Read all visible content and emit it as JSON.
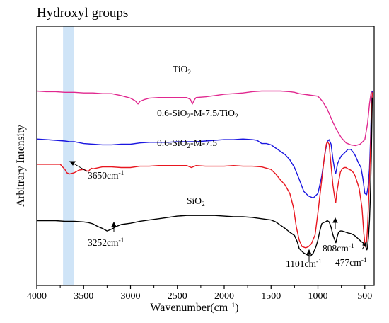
{
  "chart_data": {
    "type": "line",
    "title": "Hydroxyl groups",
    "xlabel": {
      "main": "Wavenumber(cm",
      "sup": "−1",
      "tail": ")"
    },
    "ylabel": "Arbitrary Intensity",
    "xlim": [
      4000,
      400
    ],
    "xticks": [
      4000,
      3500,
      3000,
      2500,
      2000,
      1500,
      1000,
      500
    ],
    "xtick_labels": [
      "4000",
      "3500",
      "3000",
      "2500",
      "2000",
      "1500",
      "1000",
      "500"
    ],
    "yticks": "none",
    "grid": false,
    "highlight_band": {
      "x_range": [
        3720,
        3600
      ],
      "color": "#cfe4f7"
    },
    "series": [
      {
        "name": {
          "main": "TiO",
          "sub": "2"
        },
        "color": "#e0288f",
        "points": [
          [
            4000,
            100
          ],
          [
            3900,
            101
          ],
          [
            3800,
            101
          ],
          [
            3700,
            102
          ],
          [
            3600,
            102
          ],
          [
            3500,
            103
          ],
          [
            3400,
            103
          ],
          [
            3300,
            104
          ],
          [
            3200,
            104
          ],
          [
            3100,
            107
          ],
          [
            3000,
            111
          ],
          [
            2950,
            115
          ],
          [
            2920,
            120
          ],
          [
            2900,
            116
          ],
          [
            2850,
            113
          ],
          [
            2800,
            111
          ],
          [
            2700,
            110
          ],
          [
            2600,
            110
          ],
          [
            2500,
            110
          ],
          [
            2400,
            110
          ],
          [
            2360,
            113
          ],
          [
            2340,
            120
          ],
          [
            2320,
            114
          ],
          [
            2300,
            110
          ],
          [
            2200,
            109
          ],
          [
            2100,
            107
          ],
          [
            2000,
            105
          ],
          [
            1900,
            104
          ],
          [
            1800,
            103
          ],
          [
            1700,
            101
          ],
          [
            1600,
            100
          ],
          [
            1500,
            100
          ],
          [
            1400,
            100
          ],
          [
            1300,
            101
          ],
          [
            1250,
            102
          ],
          [
            1200,
            104
          ],
          [
            1100,
            106
          ],
          [
            1000,
            108
          ],
          [
            950,
            116
          ],
          [
            900,
            128
          ],
          [
            850,
            145
          ],
          [
            800,
            160
          ],
          [
            750,
            172
          ],
          [
            700,
            180
          ],
          [
            650,
            183
          ],
          [
            600,
            184
          ],
          [
            550,
            182
          ],
          [
            500,
            175
          ],
          [
            470,
            150
          ],
          [
            450,
            120
          ],
          [
            430,
            100
          ]
        ]
      },
      {
        "name": {
          "main": "0.6-SiO",
          "sub": "2",
          "tail": "-M-7.5/TiO",
          "sub2": "2"
        },
        "color": "#1a16e0",
        "points": [
          [
            4000,
            174
          ],
          [
            3900,
            175
          ],
          [
            3800,
            176
          ],
          [
            3700,
            177
          ],
          [
            3650,
            178
          ],
          [
            3600,
            178
          ],
          [
            3500,
            181
          ],
          [
            3400,
            182
          ],
          [
            3300,
            183
          ],
          [
            3200,
            183
          ],
          [
            3100,
            182
          ],
          [
            3000,
            182
          ],
          [
            2900,
            180
          ],
          [
            2800,
            179
          ],
          [
            2700,
            179
          ],
          [
            2600,
            179
          ],
          [
            2500,
            178
          ],
          [
            2400,
            178
          ],
          [
            2300,
            178
          ],
          [
            2200,
            177
          ],
          [
            2100,
            176
          ],
          [
            2000,
            175
          ],
          [
            1900,
            175
          ],
          [
            1800,
            174
          ],
          [
            1700,
            175
          ],
          [
            1650,
            176
          ],
          [
            1600,
            181
          ],
          [
            1550,
            181
          ],
          [
            1500,
            183
          ],
          [
            1450,
            188
          ],
          [
            1400,
            193
          ],
          [
            1350,
            198
          ],
          [
            1300,
            206
          ],
          [
            1250,
            218
          ],
          [
            1200,
            236
          ],
          [
            1150,
            255
          ],
          [
            1100,
            262
          ],
          [
            1050,
            265
          ],
          [
            1000,
            258
          ],
          [
            960,
            232
          ],
          [
            920,
            192
          ],
          [
            900,
            178
          ],
          [
            880,
            175
          ],
          [
            860,
            182
          ],
          [
            840,
            205
          ],
          [
            820,
            222
          ],
          [
            810,
            227
          ],
          [
            790,
            212
          ],
          [
            770,
            205
          ],
          [
            750,
            200
          ],
          [
            720,
            196
          ],
          [
            700,
            193
          ],
          [
            680,
            190
          ],
          [
            650,
            190
          ],
          [
            620,
            195
          ],
          [
            600,
            200
          ],
          [
            570,
            210
          ],
          [
            540,
            218
          ],
          [
            520,
            235
          ],
          [
            500,
            258
          ],
          [
            480,
            260
          ],
          [
            465,
            248
          ],
          [
            450,
            220
          ],
          [
            440,
            180
          ],
          [
            430,
            130
          ],
          [
            420,
            100
          ]
        ]
      },
      {
        "name": {
          "main": "0.6-SiO",
          "sub": "2",
          "tail": "-M-7.5"
        },
        "color": "#e8161f",
        "points": [
          [
            4000,
            213
          ],
          [
            3900,
            213
          ],
          [
            3800,
            213
          ],
          [
            3750,
            213
          ],
          [
            3700,
            221
          ],
          [
            3680,
            226
          ],
          [
            3650,
            228
          ],
          [
            3600,
            226
          ],
          [
            3550,
            222
          ],
          [
            3500,
            221
          ],
          [
            3450,
            224
          ],
          [
            3420,
            219
          ],
          [
            3400,
            220
          ],
          [
            3300,
            217
          ],
          [
            3200,
            217
          ],
          [
            3100,
            218
          ],
          [
            3000,
            218
          ],
          [
            2900,
            216
          ],
          [
            2800,
            216
          ],
          [
            2700,
            215
          ],
          [
            2600,
            215
          ],
          [
            2500,
            215
          ],
          [
            2400,
            215
          ],
          [
            2350,
            218
          ],
          [
            2300,
            215
          ],
          [
            2200,
            216
          ],
          [
            2100,
            216
          ],
          [
            2000,
            216
          ],
          [
            1900,
            215
          ],
          [
            1800,
            216
          ],
          [
            1700,
            216
          ],
          [
            1600,
            217
          ],
          [
            1500,
            221
          ],
          [
            1450,
            228
          ],
          [
            1400,
            237
          ],
          [
            1350,
            245
          ],
          [
            1300,
            258
          ],
          [
            1260,
            280
          ],
          [
            1230,
            310
          ],
          [
            1200,
            330
          ],
          [
            1170,
            340
          ],
          [
            1130,
            342
          ],
          [
            1100,
            340
          ],
          [
            1070,
            336
          ],
          [
            1030,
            322
          ],
          [
            1000,
            288
          ],
          [
            960,
            238
          ],
          [
            930,
            200
          ],
          [
            910,
            182
          ],
          [
            900,
            178
          ],
          [
            880,
            182
          ],
          [
            860,
            215
          ],
          [
            840,
            245
          ],
          [
            820,
            265
          ],
          [
            810,
            272
          ],
          [
            800,
            258
          ],
          [
            780,
            240
          ],
          [
            760,
            225
          ],
          [
            740,
            220
          ],
          [
            720,
            218
          ],
          [
            700,
            218
          ],
          [
            680,
            220
          ],
          [
            650,
            222
          ],
          [
            620,
            226
          ],
          [
            600,
            232
          ],
          [
            560,
            250
          ],
          [
            530,
            280
          ],
          [
            510,
            320
          ],
          [
            495,
            340
          ],
          [
            480,
            332
          ],
          [
            470,
            310
          ],
          [
            460,
            275
          ],
          [
            450,
            235
          ],
          [
            440,
            195
          ],
          [
            430,
            140
          ],
          [
            420,
            102
          ]
        ]
      },
      {
        "name": {
          "main": "SiO",
          "sub": "2"
        },
        "color": "#000000",
        "points": [
          [
            4000,
            300
          ],
          [
            3900,
            300
          ],
          [
            3800,
            300
          ],
          [
            3700,
            301
          ],
          [
            3600,
            301
          ],
          [
            3500,
            302
          ],
          [
            3450,
            303
          ],
          [
            3400,
            305
          ],
          [
            3350,
            309
          ],
          [
            3300,
            312
          ],
          [
            3250,
            316
          ],
          [
            3200,
            313
          ],
          [
            3150,
            309
          ],
          [
            3100,
            306
          ],
          [
            3000,
            304
          ],
          [
            2900,
            301
          ],
          [
            2800,
            299
          ],
          [
            2700,
            297
          ],
          [
            2600,
            295
          ],
          [
            2500,
            293
          ],
          [
            2400,
            292
          ],
          [
            2300,
            292
          ],
          [
            2200,
            292
          ],
          [
            2100,
            292
          ],
          [
            2000,
            293
          ],
          [
            1900,
            294
          ],
          [
            1800,
            294
          ],
          [
            1700,
            295
          ],
          [
            1600,
            297
          ],
          [
            1500,
            299
          ],
          [
            1450,
            302
          ],
          [
            1400,
            307
          ],
          [
            1350,
            312
          ],
          [
            1300,
            318
          ],
          [
            1250,
            323
          ],
          [
            1220,
            333
          ],
          [
            1200,
            343
          ],
          [
            1180,
            346
          ],
          [
            1150,
            350
          ],
          [
            1100,
            354
          ],
          [
            1080,
            355
          ],
          [
            1050,
            350
          ],
          [
            1020,
            340
          ],
          [
            1000,
            330
          ],
          [
            980,
            316
          ],
          [
            960,
            305
          ],
          [
            940,
            303
          ],
          [
            920,
            302
          ],
          [
            900,
            300
          ],
          [
            880,
            302
          ],
          [
            860,
            310
          ],
          [
            840,
            322
          ],
          [
            820,
            330
          ],
          [
            808,
            334
          ],
          [
            795,
            325
          ],
          [
            780,
            318
          ],
          [
            760,
            316
          ],
          [
            740,
            316
          ],
          [
            720,
            317
          ],
          [
            700,
            318
          ],
          [
            680,
            319
          ],
          [
            650,
            320
          ],
          [
            620,
            322
          ],
          [
            600,
            324
          ],
          [
            570,
            328
          ],
          [
            540,
            332
          ],
          [
            520,
            334
          ],
          [
            500,
            338
          ],
          [
            490,
            340
          ],
          [
            480,
            345
          ],
          [
            477,
            345
          ],
          [
            470,
            340
          ],
          [
            460,
            325
          ],
          [
            450,
            300
          ],
          [
            440,
            260
          ],
          [
            430,
            200
          ],
          [
            420,
            110
          ]
        ]
      }
    ],
    "annotations": {
      "a3650": {
        "main": "3650cm",
        "sup": "-1"
      },
      "a3252": {
        "main": "3252cm",
        "sup": "-1"
      },
      "a1101": {
        "main": "1101cm",
        "sup": "-1"
      },
      "a808": {
        "main": "808cm",
        "sup": "-1"
      },
      "a477": {
        "main": "477cm",
        "sup": "-1"
      }
    }
  }
}
